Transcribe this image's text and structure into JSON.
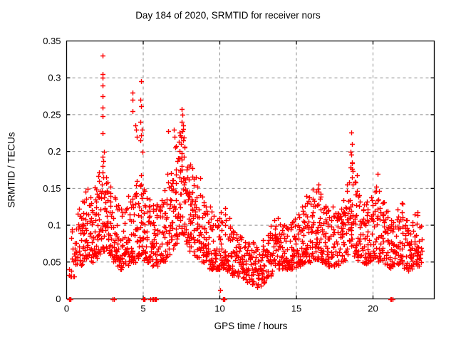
{
  "title": "Day 184 of 2020, SRMTID for receiver nors",
  "axes": {
    "x_label": "GPS time / hours",
    "y_label": "SRMTID / TECUs",
    "x_tick_labels": [
      "0",
      "5",
      "10",
      "15",
      "20"
    ],
    "x_tick_values": [
      0,
      5,
      10,
      15,
      20
    ],
    "y_tick_labels": [
      "0",
      "0.05",
      "0.1",
      "0.15",
      "0.2",
      "0.25",
      "0.3",
      "0.35"
    ],
    "y_tick_values": [
      0,
      0.05,
      0.1,
      0.15,
      0.2,
      0.25,
      0.3,
      0.35
    ]
  },
  "colors": {
    "marker": "#ff0000",
    "grid": "#8c8c8c",
    "frame": "#000000",
    "background": "#ffffff"
  },
  "chart_data": {
    "type": "scatter",
    "title": "Day 184 of 2020, SRMTID for receiver nors",
    "xlabel": "GPS time / hours",
    "ylabel": "SRMTID / TECUs",
    "xlim": [
      0,
      24
    ],
    "ylim": [
      0,
      0.35
    ],
    "grid": true,
    "legend": "none",
    "marker": "plus",
    "marker_color": "#ff0000",
    "seed": 20200184,
    "bin_format": "[hour_center, dense_low, dense_high, spike_max, n_points] per 0.25 h bin (values estimated from pixels)",
    "bins": [
      [
        0.38,
        0.03,
        0.085,
        0.1,
        10
      ],
      [
        0.63,
        0.04,
        0.095,
        0.12,
        13
      ],
      [
        0.88,
        0.045,
        0.11,
        0.13,
        15
      ],
      [
        1.13,
        0.05,
        0.12,
        0.15,
        17
      ],
      [
        1.38,
        0.05,
        0.12,
        0.15,
        17
      ],
      [
        1.63,
        0.05,
        0.125,
        0.16,
        17
      ],
      [
        1.88,
        0.055,
        0.135,
        0.17,
        18
      ],
      [
        2.13,
        0.06,
        0.15,
        0.19,
        19
      ],
      [
        2.38,
        0.065,
        0.18,
        0.21,
        21
      ],
      [
        2.63,
        0.06,
        0.15,
        0.185,
        19
      ],
      [
        2.88,
        0.055,
        0.14,
        0.16,
        18
      ],
      [
        3.13,
        0.05,
        0.125,
        0.14,
        17
      ],
      [
        3.38,
        0.045,
        0.115,
        0.13,
        16
      ],
      [
        3.63,
        0.04,
        0.11,
        0.125,
        16
      ],
      [
        3.88,
        0.045,
        0.11,
        0.125,
        16
      ],
      [
        4.13,
        0.05,
        0.12,
        0.14,
        16
      ],
      [
        4.38,
        0.05,
        0.13,
        0.15,
        16
      ],
      [
        4.63,
        0.055,
        0.14,
        0.18,
        17
      ],
      [
        4.88,
        0.06,
        0.155,
        0.2,
        18
      ],
      [
        5.13,
        0.05,
        0.135,
        0.15,
        17
      ],
      [
        5.38,
        0.05,
        0.125,
        0.14,
        16
      ],
      [
        5.63,
        0.045,
        0.115,
        0.13,
        16
      ],
      [
        5.88,
        0.045,
        0.115,
        0.13,
        16
      ],
      [
        6.13,
        0.05,
        0.125,
        0.14,
        16
      ],
      [
        6.38,
        0.05,
        0.13,
        0.15,
        16
      ],
      [
        6.63,
        0.055,
        0.14,
        0.17,
        17
      ],
      [
        6.88,
        0.065,
        0.16,
        0.2,
        18
      ],
      [
        7.13,
        0.075,
        0.18,
        0.21,
        19
      ],
      [
        7.38,
        0.085,
        0.2,
        0.23,
        20
      ],
      [
        7.63,
        0.085,
        0.205,
        0.235,
        20
      ],
      [
        7.88,
        0.075,
        0.175,
        0.2,
        19
      ],
      [
        8.13,
        0.06,
        0.16,
        0.19,
        19
      ],
      [
        8.38,
        0.055,
        0.145,
        0.185,
        17
      ],
      [
        8.63,
        0.05,
        0.135,
        0.165,
        17
      ],
      [
        8.88,
        0.05,
        0.125,
        0.15,
        17
      ],
      [
        9.13,
        0.045,
        0.115,
        0.13,
        16
      ],
      [
        9.38,
        0.04,
        0.105,
        0.125,
        15
      ],
      [
        9.63,
        0.04,
        0.1,
        0.12,
        15
      ],
      [
        9.88,
        0.04,
        0.1,
        0.115,
        15
      ],
      [
        10.13,
        0.04,
        0.1,
        0.12,
        15
      ],
      [
        10.38,
        0.04,
        0.105,
        0.13,
        15
      ],
      [
        10.63,
        0.035,
        0.095,
        0.11,
        15
      ],
      [
        10.88,
        0.03,
        0.09,
        0.1,
        15
      ],
      [
        11.13,
        0.03,
        0.08,
        0.095,
        15
      ],
      [
        11.38,
        0.03,
        0.078,
        0.09,
        14
      ],
      [
        11.63,
        0.025,
        0.07,
        0.085,
        14
      ],
      [
        11.88,
        0.022,
        0.068,
        0.08,
        14
      ],
      [
        12.13,
        0.02,
        0.065,
        0.08,
        14
      ],
      [
        12.38,
        0.016,
        0.06,
        0.075,
        14
      ],
      [
        12.63,
        0.018,
        0.06,
        0.072,
        14
      ],
      [
        12.88,
        0.022,
        0.065,
        0.08,
        14
      ],
      [
        13.13,
        0.028,
        0.075,
        0.09,
        14
      ],
      [
        13.38,
        0.03,
        0.085,
        0.1,
        15
      ],
      [
        13.63,
        0.038,
        0.095,
        0.112,
        15
      ],
      [
        13.88,
        0.04,
        0.098,
        0.11,
        15
      ],
      [
        14.13,
        0.04,
        0.092,
        0.105,
        15
      ],
      [
        14.38,
        0.04,
        0.09,
        0.1,
        15
      ],
      [
        14.63,
        0.04,
        0.095,
        0.11,
        15
      ],
      [
        14.88,
        0.042,
        0.098,
        0.11,
        15
      ],
      [
        15.13,
        0.045,
        0.1,
        0.115,
        15
      ],
      [
        15.38,
        0.048,
        0.108,
        0.13,
        16
      ],
      [
        15.63,
        0.05,
        0.118,
        0.14,
        17
      ],
      [
        15.88,
        0.05,
        0.125,
        0.15,
        17
      ],
      [
        16.13,
        0.05,
        0.128,
        0.15,
        17
      ],
      [
        16.38,
        0.052,
        0.135,
        0.155,
        17
      ],
      [
        16.63,
        0.05,
        0.128,
        0.145,
        17
      ],
      [
        16.88,
        0.048,
        0.118,
        0.135,
        16
      ],
      [
        17.13,
        0.042,
        0.108,
        0.12,
        15
      ],
      [
        17.38,
        0.042,
        0.108,
        0.128,
        15
      ],
      [
        17.63,
        0.045,
        0.115,
        0.13,
        16
      ],
      [
        17.88,
        0.048,
        0.11,
        0.125,
        16
      ],
      [
        18.13,
        0.05,
        0.118,
        0.135,
        16
      ],
      [
        18.38,
        0.058,
        0.138,
        0.16,
        17
      ],
      [
        18.63,
        0.068,
        0.175,
        0.2,
        19
      ],
      [
        18.88,
        0.058,
        0.148,
        0.175,
        17
      ],
      [
        19.13,
        0.05,
        0.128,
        0.145,
        16
      ],
      [
        19.38,
        0.048,
        0.12,
        0.135,
        16
      ],
      [
        19.63,
        0.048,
        0.118,
        0.132,
        16
      ],
      [
        19.88,
        0.05,
        0.125,
        0.148,
        16
      ],
      [
        20.13,
        0.055,
        0.138,
        0.165,
        17
      ],
      [
        20.38,
        0.05,
        0.128,
        0.152,
        16
      ],
      [
        20.63,
        0.048,
        0.118,
        0.132,
        16
      ],
      [
        20.88,
        0.045,
        0.108,
        0.12,
        16
      ],
      [
        21.13,
        0.04,
        0.098,
        0.11,
        15
      ],
      [
        21.38,
        0.04,
        0.095,
        0.108,
        14
      ],
      [
        21.63,
        0.045,
        0.108,
        0.128,
        15
      ],
      [
        21.88,
        0.048,
        0.115,
        0.132,
        15
      ],
      [
        22.13,
        0.04,
        0.098,
        0.11,
        14
      ],
      [
        22.38,
        0.038,
        0.088,
        0.1,
        14
      ],
      [
        22.63,
        0.04,
        0.095,
        0.118,
        14
      ],
      [
        22.88,
        0.045,
        0.098,
        0.118,
        15
      ],
      [
        23.08,
        0.04,
        0.088,
        0.1,
        10
      ]
    ],
    "outliers": [
      [
        2.35,
        0.33
      ],
      [
        2.35,
        0.305
      ],
      [
        2.37,
        0.3
      ],
      [
        2.33,
        0.29
      ],
      [
        2.36,
        0.275
      ],
      [
        2.34,
        0.26
      ],
      [
        2.36,
        0.248
      ],
      [
        2.33,
        0.225
      ],
      [
        4.3,
        0.27
      ],
      [
        4.32,
        0.28
      ],
      [
        4.28,
        0.255
      ],
      [
        4.5,
        0.235
      ],
      [
        4.55,
        0.23
      ],
      [
        4.6,
        0.22
      ],
      [
        4.85,
        0.295
      ],
      [
        4.83,
        0.27
      ],
      [
        4.87,
        0.262
      ],
      [
        4.8,
        0.24
      ],
      [
        4.9,
        0.23
      ],
      [
        4.88,
        0.222
      ],
      [
        4.82,
        0.215
      ],
      [
        6.62,
        0.228
      ],
      [
        7.0,
        0.23
      ],
      [
        7.05,
        0.22
      ],
      [
        7.5,
        0.258
      ],
      [
        7.55,
        0.25
      ],
      [
        7.52,
        0.24
      ],
      [
        7.6,
        0.235
      ],
      [
        7.58,
        0.228
      ],
      [
        7.45,
        0.22
      ],
      [
        7.62,
        0.215
      ],
      [
        7.48,
        0.21
      ],
      [
        16.45,
        0.155
      ],
      [
        18.6,
        0.226
      ],
      [
        18.62,
        0.21
      ],
      [
        18.58,
        0.196
      ],
      [
        18.65,
        0.185
      ],
      [
        18.55,
        0.178
      ],
      [
        20.3,
        0.17
      ],
      [
        0.15,
        0.04
      ],
      [
        0.18,
        0.032
      ],
      [
        0.25,
        0.03
      ],
      [
        10.0,
        0.012
      ]
    ],
    "zero_points": [
      0.18,
      0.2,
      0.22,
      0.25,
      3.0,
      3.08,
      5.0,
      5.05,
      5.1,
      5.45,
      5.6,
      5.65,
      5.75,
      5.8,
      5.85,
      10.2,
      10.25,
      10.3,
      21.15,
      21.2,
      21.3
    ]
  }
}
